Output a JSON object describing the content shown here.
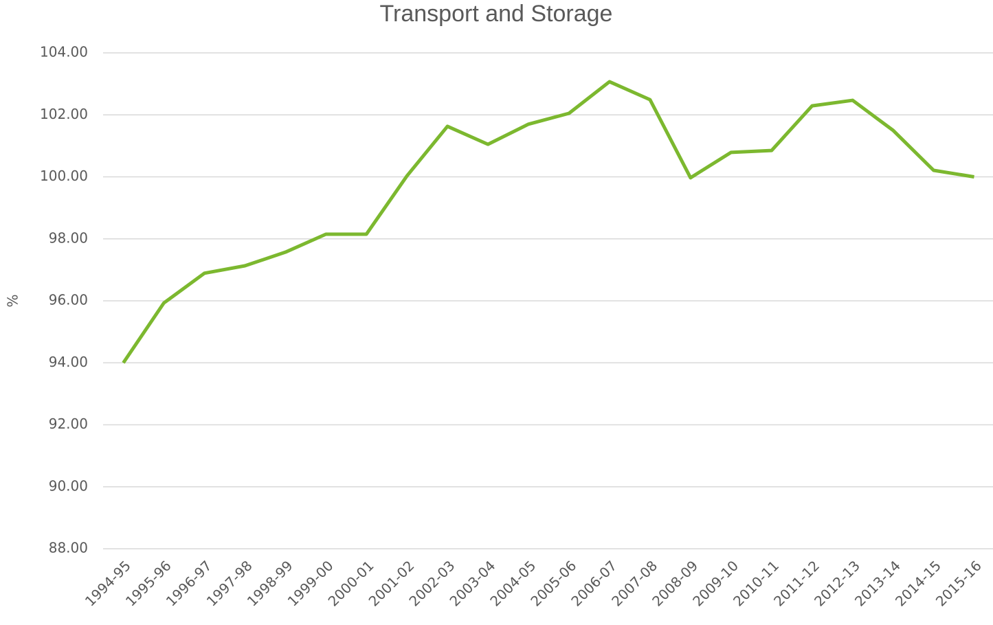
{
  "chart_data": {
    "type": "line",
    "title": "Transport and Storage",
    "ylabel": "%",
    "categories": [
      "1994-95",
      "1995-96",
      "1996-97",
      "1997-98",
      "1998-99",
      "1999-00",
      "2000-01",
      "2001-02",
      "2002-03",
      "2003-04",
      "2004-05",
      "2005-06",
      "2006-07",
      "2007-08",
      "2008-09",
      "2009-10",
      "2010-11",
      "2011-12",
      "2012-13",
      "2013-14",
      "2014-15",
      "2015-16"
    ],
    "series": [
      {
        "name": "Transport and Storage",
        "color": "#7cb82f",
        "values": [
          94.0,
          95.93,
          96.89,
          97.13,
          97.57,
          98.15,
          98.15,
          100.03,
          101.63,
          101.05,
          101.7,
          102.05,
          103.07,
          102.49,
          99.97,
          100.79,
          100.85,
          102.29,
          102.47,
          101.5,
          100.21,
          100.0
        ]
      }
    ],
    "ylim": [
      88,
      104
    ],
    "yticks": [
      {
        "value": 88,
        "label": "88.00"
      },
      {
        "value": 90,
        "label": "90.00"
      },
      {
        "value": 92,
        "label": "92.00"
      },
      {
        "value": 94,
        "label": "94.00"
      },
      {
        "value": 96,
        "label": "96.00"
      },
      {
        "value": 98,
        "label": "98.00"
      },
      {
        "value": 100,
        "label": "100.00"
      },
      {
        "value": 102,
        "label": "102.00"
      },
      {
        "value": 104,
        "label": "104.00"
      }
    ],
    "grid": true
  }
}
